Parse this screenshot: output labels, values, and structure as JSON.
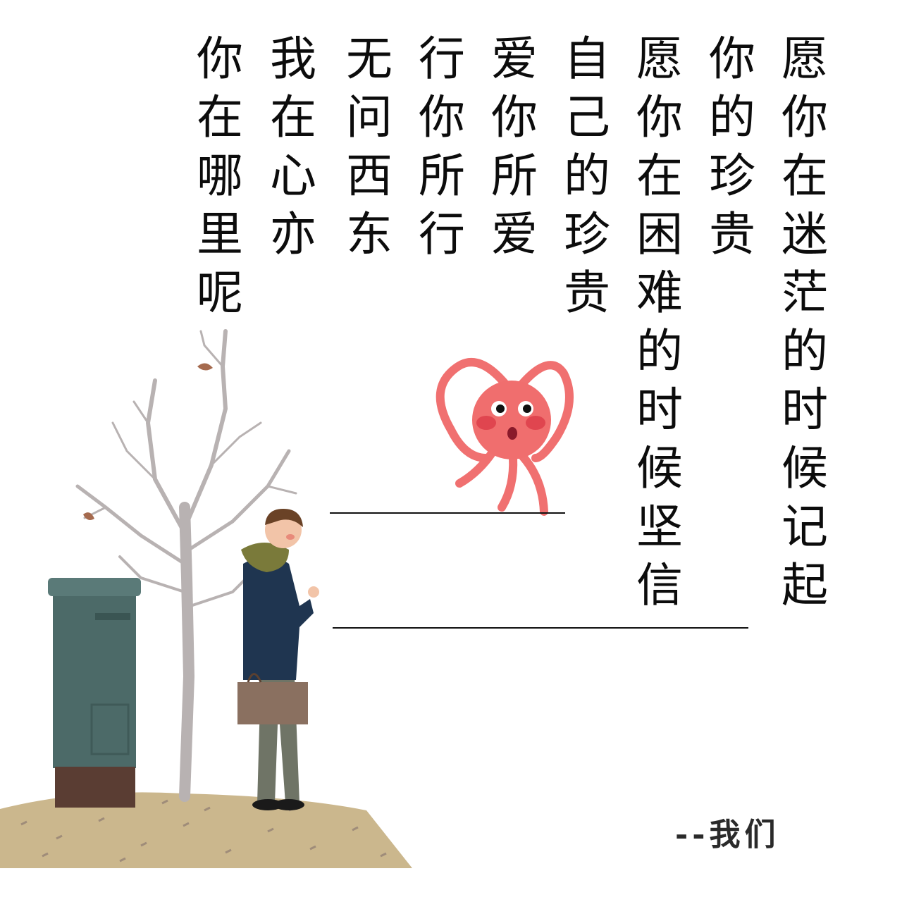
{
  "poem": {
    "columns": [
      {
        "text": "愿你在迷茫的时候记起"
      },
      {
        "text": "你的珍贵"
      },
      {
        "text": "愿你在困难的时候坚信"
      },
      {
        "text": "自己的珍贵"
      },
      {
        "text": "爱你所爱"
      },
      {
        "text": "行你所行"
      },
      {
        "text": "无问西东"
      },
      {
        "text": "我在心亦"
      },
      {
        "text": "你在哪里呢"
      }
    ]
  },
  "signature": "--我们",
  "colors": {
    "text": "#0c0c0c",
    "octopus": "#f06e6e",
    "mailbox": "#4c6a68",
    "coat": "#1f3550",
    "ground": "#c9b48a"
  },
  "illustration": {
    "icons": [
      "bare-tree-icon",
      "mailbox-icon",
      "man-figure-icon",
      "octopus-heart-icon",
      "ground-icon"
    ]
  }
}
